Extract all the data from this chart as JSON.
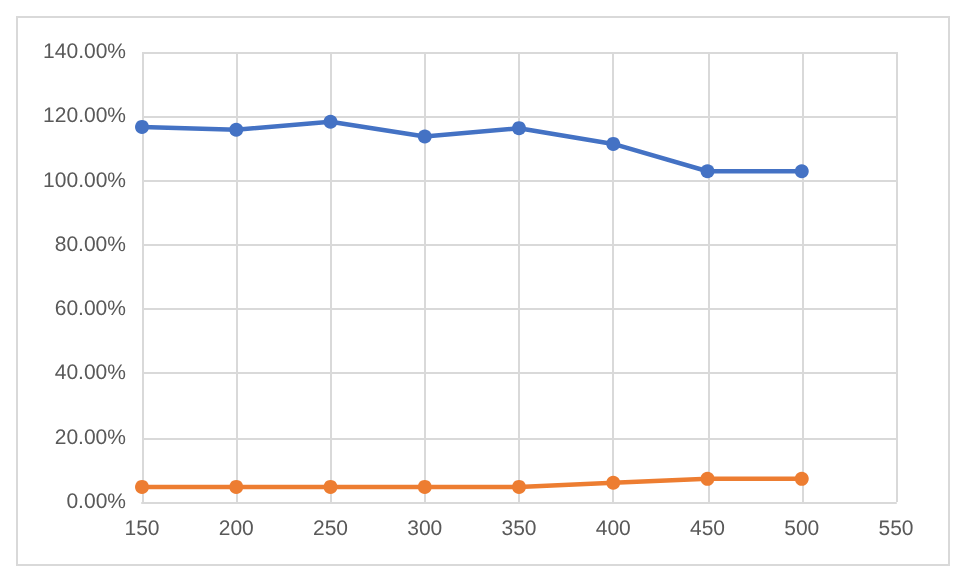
{
  "chart_data": {
    "type": "line",
    "x": [
      150,
      200,
      250,
      300,
      350,
      400,
      450,
      500
    ],
    "series": [
      {
        "color": "#4472c4",
        "values": [
          116.7,
          115.8,
          118.3,
          113.7,
          116.3,
          111.4,
          102.9,
          102.9
        ]
      },
      {
        "color": "#ed7d31",
        "values": [
          4.7,
          4.7,
          4.7,
          4.7,
          4.7,
          6.0,
          7.2,
          7.2
        ]
      }
    ],
    "xlim": [
      150,
      550
    ],
    "xticks": [
      150,
      200,
      250,
      300,
      350,
      400,
      450,
      500,
      550
    ],
    "ylim": [
      0,
      140
    ],
    "yticks": [
      {
        "value": 0,
        "label": "0.00%"
      },
      {
        "value": 20,
        "label": "20.00%"
      },
      {
        "value": 40,
        "label": "40.00%"
      },
      {
        "value": 60,
        "label": "60.00%"
      },
      {
        "value": 80,
        "label": "80.00%"
      },
      {
        "value": 100,
        "label": "100.00%"
      },
      {
        "value": 120,
        "label": "120.00%"
      },
      {
        "value": 140,
        "label": "140.00%"
      }
    ],
    "grid": true,
    "marker": "circle",
    "line_style": "solid"
  }
}
